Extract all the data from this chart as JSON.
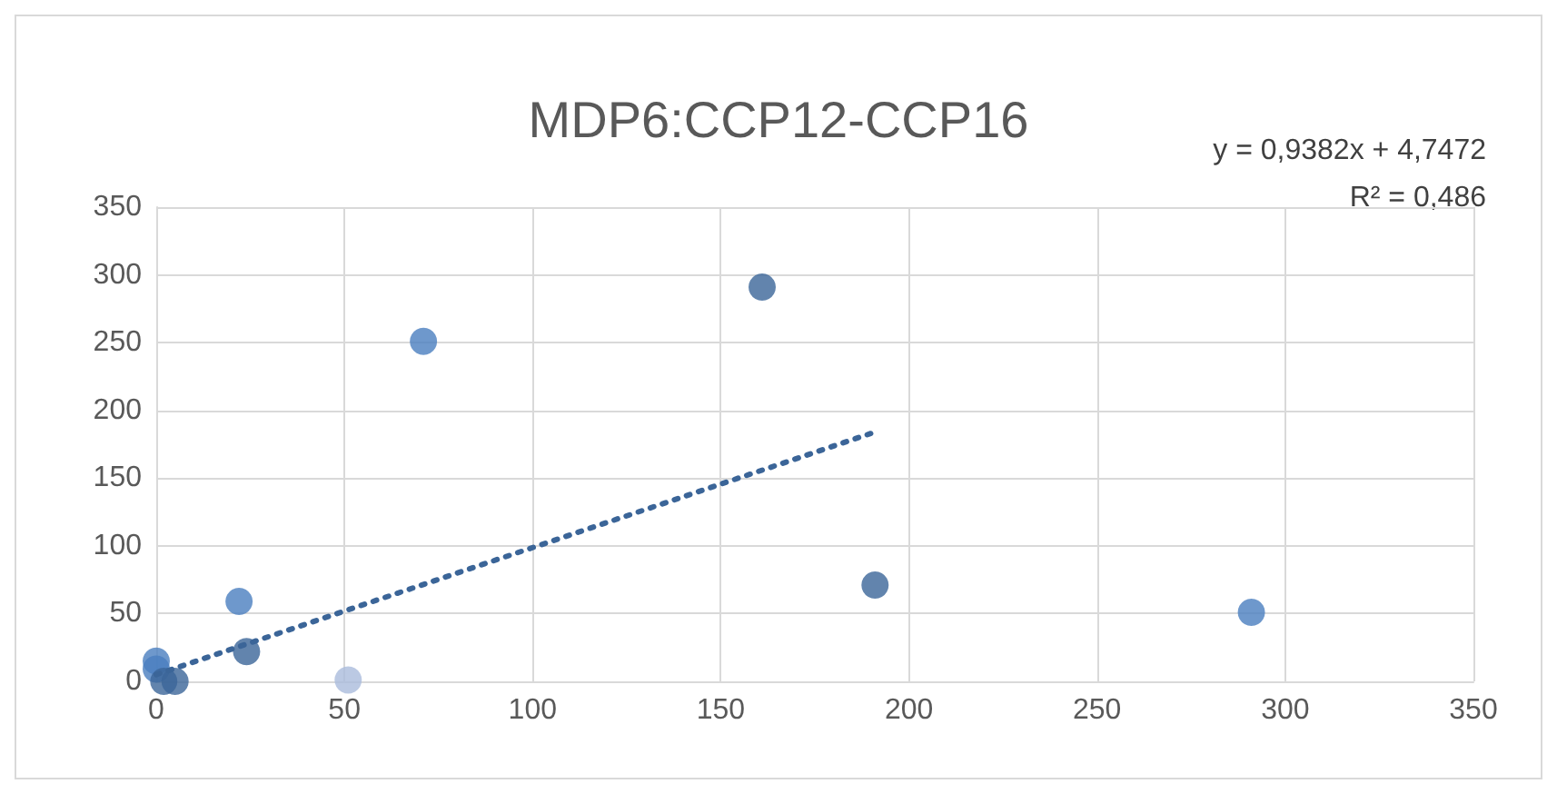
{
  "chart_data": {
    "type": "scatter",
    "title": "MDP6:CCP12-CCP16",
    "xlim": [
      0,
      350
    ],
    "xticks": [
      0,
      50,
      100,
      150,
      200,
      250,
      300,
      350
    ],
    "ylim": [
      0,
      350
    ],
    "yticks": [
      0,
      50,
      100,
      150,
      200,
      250,
      300,
      350
    ],
    "grid": true,
    "marker": "circle",
    "annotations": [
      "y = 0,9382x + 4,7472",
      "R² = 0,486"
    ],
    "series": [
      {
        "color": "#4a7ebf",
        "x": [
          0,
          0,
          22,
          71,
          291
        ],
        "values": [
          15,
          9,
          59,
          251,
          51
        ]
      },
      {
        "color": "#3b6598",
        "x": [
          2,
          5,
          24,
          161,
          191
        ],
        "values": [
          0,
          0,
          22,
          291,
          71
        ]
      },
      {
        "color": "#aabbdc",
        "x": [
          51
        ],
        "values": [
          1
        ]
      },
      {
        "type": "line",
        "line_style": "dotted",
        "marker": "none",
        "color": "#3b6598",
        "x": [
          0,
          191
        ],
        "values": [
          5,
          184
        ]
      }
    ]
  }
}
